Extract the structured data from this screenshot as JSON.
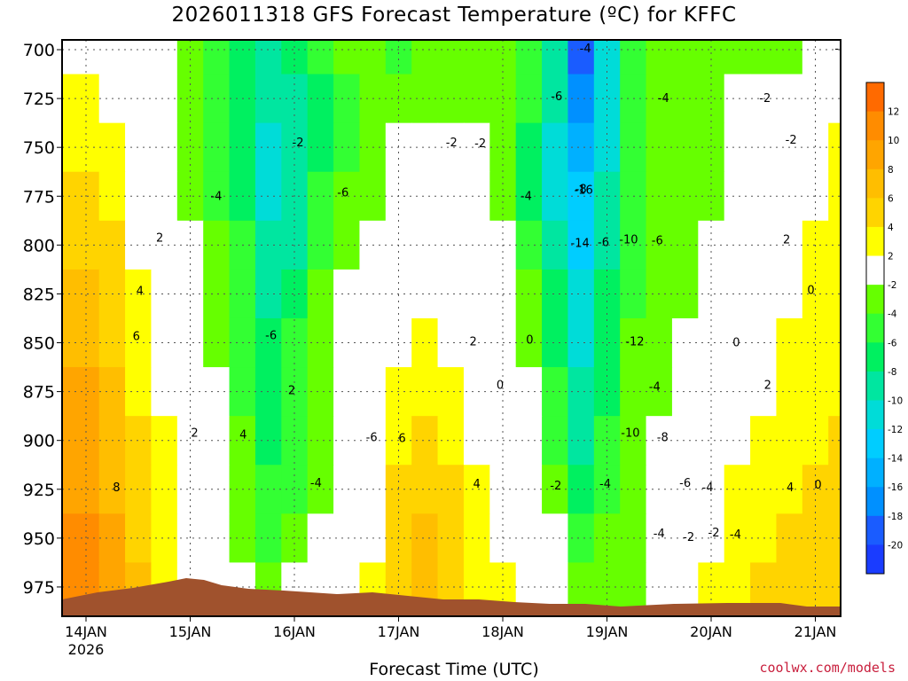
{
  "title": "2026011318 GFS Forecast Temperature (ºC) for KFFC",
  "xlabel": "Forecast Time (UTC)",
  "credit": "coolwx.com/models",
  "chart_data": {
    "type": "heatmap",
    "title": "2026011318 GFS Forecast Temperature (ºC) for KFFC",
    "xlabel": "Forecast Time (UTC)",
    "ylabel": "",
    "x_ticks": [
      "14JAN",
      "15JAN",
      "16JAN",
      "17JAN",
      "18JAN",
      "19JAN",
      "20JAN",
      "21JAN"
    ],
    "x_tick_sublabel": "2026",
    "y_ticks": [
      700,
      725,
      750,
      775,
      800,
      825,
      850,
      875,
      900,
      925,
      950,
      975
    ],
    "ylim": [
      990,
      695
    ],
    "xlim_hours": [
      0,
      180
    ],
    "grid": true,
    "legend_placement": "right",
    "colorbar_labels": [
      "12",
      "10",
      "8",
      "6",
      "4",
      "2",
      "-2",
      "-4",
      "-6",
      "-8",
      "-10",
      "-12",
      "-14",
      "-16",
      "-18",
      "-20"
    ],
    "colorbar_colors": [
      "#ff6a00",
      "#ff8c00",
      "#ffa500",
      "#ffbe00",
      "#ffd400",
      "#ffff00",
      "#ffffff",
      "#66ff00",
      "#33ff33",
      "#00f060",
      "#00e6a0",
      "#00dcd8",
      "#00cdff",
      "#00b0ff",
      "#0090ff",
      "#1a5cff",
      "#1a3cff"
    ],
    "temperature_grid": {
      "hours": [
        0,
        6,
        12,
        18,
        24,
        30,
        36,
        42,
        48,
        54,
        60,
        66,
        72,
        78,
        84,
        90,
        96,
        102,
        108,
        114,
        120,
        126,
        132,
        138,
        144,
        150,
        156,
        162,
        168,
        174,
        180
      ],
      "pressures": [
        700,
        725,
        750,
        775,
        800,
        825,
        850,
        875,
        900,
        925,
        950,
        975
      ],
      "values": [
        [
          0,
          0,
          0,
          -2,
          -4,
          -6,
          -8,
          -10,
          -8,
          -6,
          -4,
          -4,
          -6,
          -4,
          -4,
          -4,
          -4,
          -6,
          -10,
          -20,
          -12,
          -6,
          -4,
          -4,
          -4,
          -4,
          -4,
          -4,
          -2,
          -2,
          -2
        ],
        [
          3,
          1,
          0,
          -2,
          -4,
          -6,
          -8,
          -10,
          -10,
          -8,
          -6,
          -4,
          -4,
          -4,
          -4,
          -4,
          -4,
          -6,
          -10,
          -18,
          -12,
          -6,
          -4,
          -4,
          -4,
          -2,
          -2,
          -2,
          0,
          0,
          0
        ],
        [
          3,
          2,
          0,
          -2,
          -4,
          -6,
          -8,
          -12,
          -10,
          -8,
          -6,
          -4,
          -2,
          0,
          -2,
          -2,
          -4,
          -8,
          -12,
          -16,
          -12,
          -6,
          -4,
          -4,
          -4,
          -2,
          0,
          0,
          0,
          2,
          2
        ],
        [
          4,
          3,
          1,
          0,
          -4,
          -6,
          -8,
          -12,
          -10,
          -6,
          -4,
          -4,
          -2,
          0,
          1,
          -2,
          -4,
          -8,
          -12,
          -14,
          -10,
          -6,
          -4,
          -4,
          -4,
          -2,
          0,
          0,
          1,
          2,
          2
        ],
        [
          5,
          4,
          1,
          0,
          -2,
          -4,
          -6,
          -10,
          -10,
          -6,
          -4,
          -2,
          0,
          0,
          1,
          -2,
          -2,
          -6,
          -10,
          -14,
          -10,
          -6,
          -4,
          -4,
          -2,
          0,
          0,
          1,
          2,
          3,
          3
        ],
        [
          6,
          5,
          2,
          0,
          -2,
          -4,
          -6,
          -10,
          -8,
          -4,
          -2,
          0,
          0,
          1,
          1,
          0,
          -2,
          -4,
          -8,
          -12,
          -8,
          -6,
          -4,
          -4,
          -2,
          0,
          0,
          1,
          2,
          3,
          3
        ],
        [
          7,
          5,
          3,
          1,
          -2,
          -4,
          -6,
          -8,
          -6,
          -4,
          -2,
          0,
          1,
          2,
          1,
          0,
          -2,
          -4,
          -8,
          -12,
          -8,
          -4,
          -4,
          -2,
          0,
          0,
          1,
          2,
          3,
          3,
          4
        ],
        [
          8,
          6,
          3,
          1,
          0,
          -2,
          -6,
          -8,
          -6,
          -4,
          -2,
          0,
          2,
          3,
          2,
          0,
          0,
          -2,
          -6,
          -10,
          -8,
          -4,
          -4,
          -2,
          0,
          1,
          1,
          2,
          3,
          3,
          4
        ],
        [
          8,
          6,
          4,
          2,
          0,
          -2,
          -4,
          -8,
          -6,
          -4,
          -2,
          0,
          3,
          4,
          3,
          1,
          0,
          -2,
          -6,
          -10,
          -6,
          -4,
          -2,
          0,
          0,
          1,
          2,
          3,
          3,
          4,
          4
        ],
        [
          9,
          7,
          4,
          2,
          0,
          -2,
          -4,
          -6,
          -6,
          -4,
          -2,
          1,
          4,
          5,
          4,
          2,
          0,
          -2,
          -4,
          -8,
          -6,
          -4,
          -2,
          0,
          1,
          2,
          3,
          3,
          4,
          4,
          4
        ],
        [
          10,
          8,
          5,
          3,
          1,
          -2,
          -4,
          -6,
          -4,
          -2,
          0,
          1,
          5,
          6,
          5,
          3,
          1,
          -2,
          -2,
          -6,
          -4,
          -4,
          -2,
          0,
          1,
          2,
          3,
          4,
          4,
          5,
          5
        ],
        [
          11,
          8,
          6,
          3,
          1,
          0,
          -2,
          -4,
          -2,
          0,
          0,
          2,
          5,
          6,
          5,
          3,
          2,
          0,
          -2,
          -4,
          -4,
          -4,
          -2,
          0,
          2,
          3,
          4,
          4,
          5,
          5,
          5
        ]
      ]
    },
    "contour_labels": [
      "2",
      "4",
      "6",
      "8",
      "4",
      "2",
      "-2",
      "-4",
      "-6",
      "-6",
      "-6",
      "-4",
      "-6",
      "-4",
      "-4",
      "-2",
      "-4",
      "-2",
      "-8",
      "-6",
      "-16",
      "-14",
      "-10",
      "-12",
      "-6",
      "-4",
      "-2",
      "-10",
      "-8",
      "-6",
      "-4",
      "-2",
      "-4",
      "-4",
      "-2",
      "-4",
      "2",
      "0",
      "0",
      "6",
      "4",
      "2",
      "0",
      "0",
      "0",
      "-2",
      "2",
      "2",
      "4",
      "2",
      "-2",
      "-4",
      "4"
    ]
  }
}
